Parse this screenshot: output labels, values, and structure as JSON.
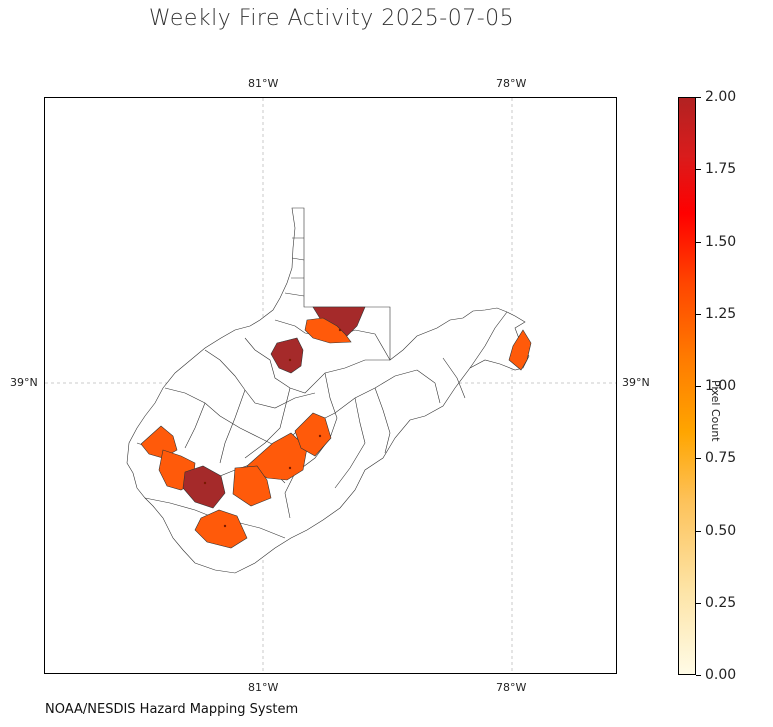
{
  "title": "Weekly Fire Activity 2025-07-05",
  "source": "NOAA/NESDIS Hazard Mapping System",
  "map": {
    "region": "West Virginia",
    "longitude_labels": [
      "81°W",
      "78°W"
    ],
    "latitude_labels": [
      "39°N"
    ],
    "gridlines": true
  },
  "colorbar": {
    "label": "Pixel Count",
    "min": 0.0,
    "max": 2.0,
    "tick_labels": [
      "2.00",
      "1.75",
      "1.50",
      "1.25",
      "1.00",
      "0.75",
      "0.50",
      "0.25",
      "0.00"
    ],
    "colormap": [
      "#fffbe6",
      "#ffa500",
      "#ff4500",
      "#ff0000",
      "#b22222"
    ]
  },
  "fire_counties": [
    {
      "id": "north-panhandle-a",
      "pixel_count": 2
    },
    {
      "id": "north-panhandle-b",
      "pixel_count": 1
    },
    {
      "id": "northcentral",
      "pixel_count": 2
    },
    {
      "id": "eastern-panhandle",
      "pixel_count": 1
    },
    {
      "id": "southwest-a",
      "pixel_count": 1
    },
    {
      "id": "southwest-b",
      "pixel_count": 1
    },
    {
      "id": "south-central",
      "pixel_count": 2
    },
    {
      "id": "central-a",
      "pixel_count": 1
    },
    {
      "id": "central-b",
      "pixel_count": 1
    },
    {
      "id": "central-c",
      "pixel_count": 1
    },
    {
      "id": "south",
      "pixel_count": 1
    }
  ]
}
